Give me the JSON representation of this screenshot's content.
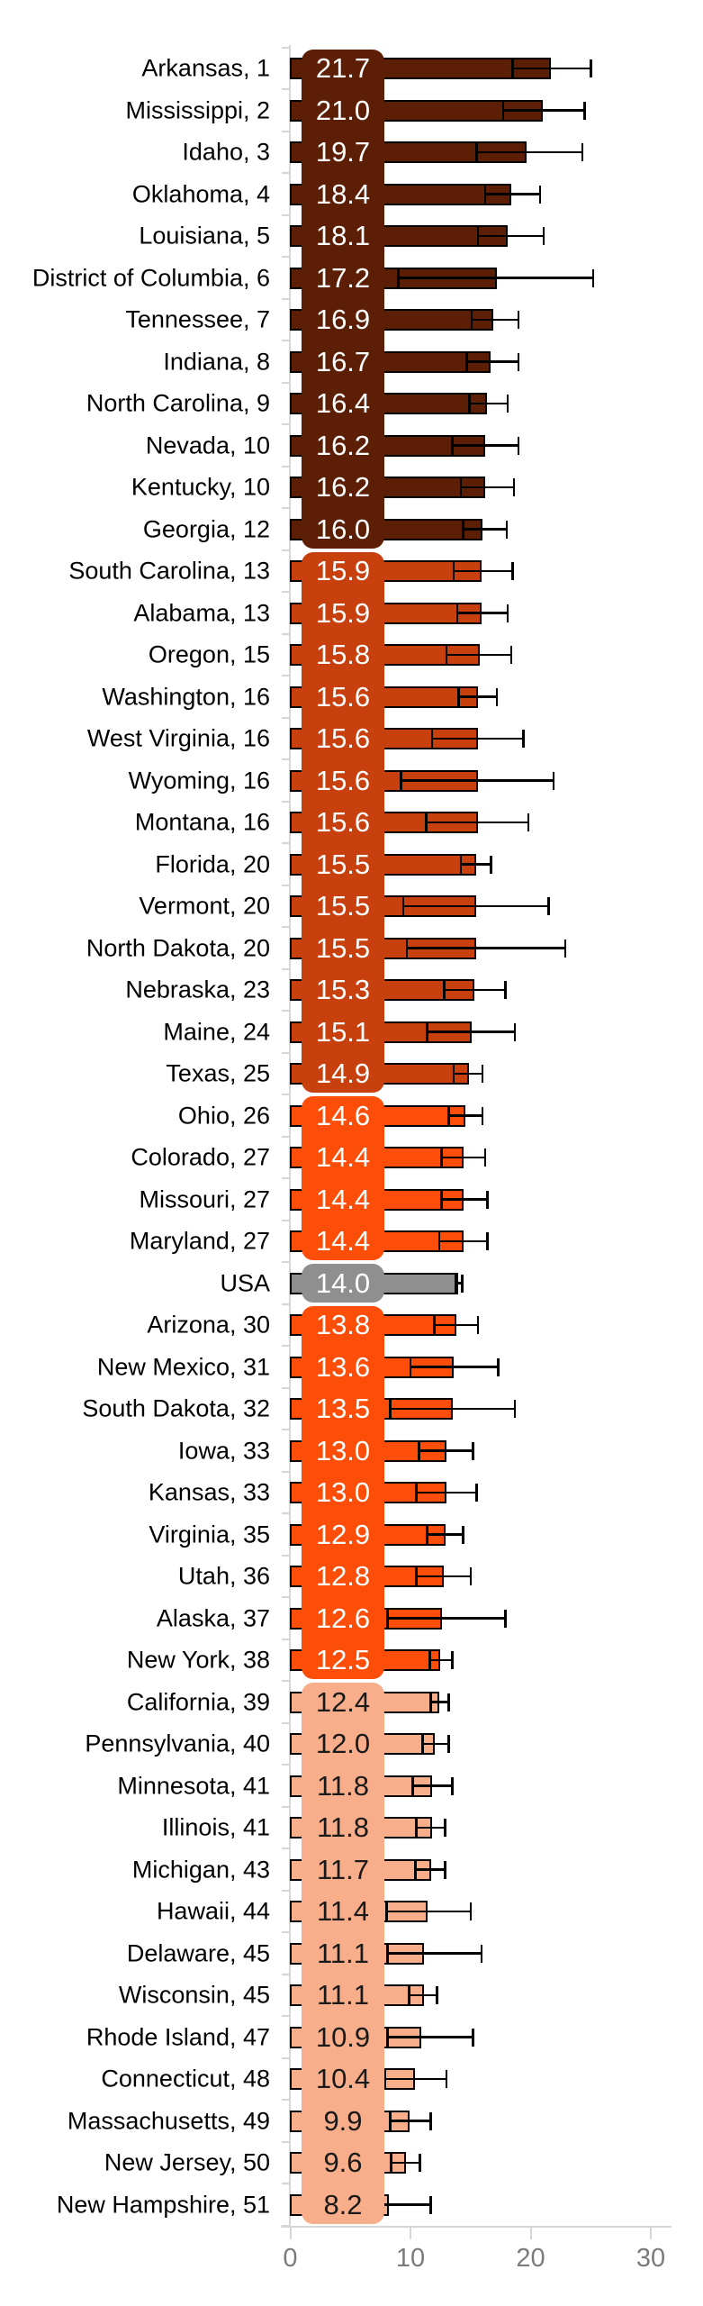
{
  "chart_data": {
    "type": "bar",
    "orientation": "horizontal",
    "title": "",
    "xlabel": "",
    "ylabel": "",
    "x_axis": {
      "range": [
        0,
        30
      ],
      "ticks": [
        0,
        10,
        20,
        30
      ],
      "grid": false
    },
    "legend": "none",
    "style": {
      "axis_color": "#D6D6D6",
      "tick_label_color": "#7B7B7B",
      "bar_outline_color": "#000000",
      "error_bar_color": "#000000",
      "state_label_color": "#000000"
    },
    "tiers": [
      {
        "name": "ranks-1-12",
        "color": "#5C1F05",
        "text_color": "#FFFFFF",
        "from": 1,
        "to": 12
      },
      {
        "name": "ranks-13-25",
        "color": "#C7400D",
        "text_color": "#FFFFFF",
        "from": 13,
        "to": 25
      },
      {
        "name": "ranks-26-29",
        "color": "#FC4E08",
        "text_color": "#FFFFFF",
        "from": 26,
        "to": 29
      },
      {
        "name": "usa",
        "color": "#8F8F8F",
        "text_color": "#FFFFFF",
        "from": 30,
        "to": 30
      },
      {
        "name": "ranks-31-39",
        "color": "#FC4E08",
        "text_color": "#FFFFFF",
        "from": 31,
        "to": 39
      },
      {
        "name": "ranks-40-52",
        "color": "#F8AE8A",
        "text_color": "#1A1A1A",
        "from": 40,
        "to": 52
      }
    ],
    "rows": [
      {
        "label": "Arkansas, 1",
        "value": 21.7,
        "ci_low": 18.5,
        "ci_high": 25.0
      },
      {
        "label": "Mississippi, 2",
        "value": 21.0,
        "ci_low": 17.7,
        "ci_high": 24.5
      },
      {
        "label": "Idaho, 3",
        "value": 19.7,
        "ci_low": 15.5,
        "ci_high": 24.3
      },
      {
        "label": "Oklahoma, 4",
        "value": 18.4,
        "ci_low": 16.2,
        "ci_high": 20.8
      },
      {
        "label": "Louisiana, 5",
        "value": 18.1,
        "ci_low": 15.6,
        "ci_high": 21.1
      },
      {
        "label": "District of Columbia, 6",
        "value": 17.2,
        "ci_low": 9.0,
        "ci_high": 25.2
      },
      {
        "label": "Tennessee, 7",
        "value": 16.9,
        "ci_low": 15.1,
        "ci_high": 19.0
      },
      {
        "label": "Indiana, 8",
        "value": 16.7,
        "ci_low": 14.7,
        "ci_high": 19.0
      },
      {
        "label": "North Carolina, 9",
        "value": 16.4,
        "ci_low": 14.9,
        "ci_high": 18.1
      },
      {
        "label": "Nevada, 10",
        "value": 16.2,
        "ci_low": 13.5,
        "ci_high": 19.0
      },
      {
        "label": "Kentucky, 10",
        "value": 16.2,
        "ci_low": 14.2,
        "ci_high": 18.6
      },
      {
        "label": "Georgia, 12",
        "value": 16.0,
        "ci_low": 14.4,
        "ci_high": 18.0
      },
      {
        "label": "South Carolina, 13",
        "value": 15.9,
        "ci_low": 13.6,
        "ci_high": 18.5
      },
      {
        "label": "Alabama, 13",
        "value": 15.9,
        "ci_low": 13.9,
        "ci_high": 18.1
      },
      {
        "label": "Oregon, 15",
        "value": 15.8,
        "ci_low": 13.0,
        "ci_high": 18.4
      },
      {
        "label": "Washington, 16",
        "value": 15.6,
        "ci_low": 14.0,
        "ci_high": 17.2
      },
      {
        "label": "West Virginia, 16",
        "value": 15.6,
        "ci_low": 11.8,
        "ci_high": 19.4
      },
      {
        "label": "Wyoming, 16",
        "value": 15.6,
        "ci_low": 9.2,
        "ci_high": 21.9
      },
      {
        "label": "Montana, 16",
        "value": 15.6,
        "ci_low": 11.3,
        "ci_high": 19.8
      },
      {
        "label": "Florida, 20",
        "value": 15.5,
        "ci_low": 14.2,
        "ci_high": 16.7
      },
      {
        "label": "Vermont, 20",
        "value": 15.5,
        "ci_low": 9.4,
        "ci_high": 21.5
      },
      {
        "label": "North Dakota, 20",
        "value": 15.5,
        "ci_low": 9.7,
        "ci_high": 22.9
      },
      {
        "label": "Nebraska, 23",
        "value": 15.3,
        "ci_low": 12.8,
        "ci_high": 17.9
      },
      {
        "label": "Maine, 24",
        "value": 15.1,
        "ci_low": 11.4,
        "ci_high": 18.7
      },
      {
        "label": "Texas, 25",
        "value": 14.9,
        "ci_low": 13.6,
        "ci_high": 16.0
      },
      {
        "label": "Ohio, 26",
        "value": 14.6,
        "ci_low": 13.2,
        "ci_high": 16.0
      },
      {
        "label": "Colorado, 27",
        "value": 14.4,
        "ci_low": 12.6,
        "ci_high": 16.2
      },
      {
        "label": "Missouri, 27",
        "value": 14.4,
        "ci_low": 12.6,
        "ci_high": 16.4
      },
      {
        "label": "Maryland, 27",
        "value": 14.4,
        "ci_low": 12.4,
        "ci_high": 16.4
      },
      {
        "label": "USA",
        "value": 14.0,
        "ci_low": 13.8,
        "ci_high": 14.3
      },
      {
        "label": "Arizona, 30",
        "value": 13.8,
        "ci_low": 12.0,
        "ci_high": 15.6
      },
      {
        "label": "New Mexico, 31",
        "value": 13.6,
        "ci_low": 10.0,
        "ci_high": 17.3
      },
      {
        "label": "South Dakota, 32",
        "value": 13.5,
        "ci_low": 8.3,
        "ci_high": 18.7
      },
      {
        "label": "Iowa, 33",
        "value": 13.0,
        "ci_low": 10.7,
        "ci_high": 15.2
      },
      {
        "label": "Kansas, 33",
        "value": 13.0,
        "ci_low": 10.5,
        "ci_high": 15.5
      },
      {
        "label": "Virginia, 35",
        "value": 12.9,
        "ci_low": 11.4,
        "ci_high": 14.4
      },
      {
        "label": "Utah, 36",
        "value": 12.8,
        "ci_low": 10.5,
        "ci_high": 15.0
      },
      {
        "label": "Alaska, 37",
        "value": 12.6,
        "ci_low": 8.1,
        "ci_high": 17.9
      },
      {
        "label": "New York, 38",
        "value": 12.5,
        "ci_low": 11.6,
        "ci_high": 13.5
      },
      {
        "label": "California, 39",
        "value": 12.4,
        "ci_low": 11.7,
        "ci_high": 13.2
      },
      {
        "label": "Pennsylvania, 40",
        "value": 12.0,
        "ci_low": 11.0,
        "ci_high": 13.2
      },
      {
        "label": "Minnesota, 41",
        "value": 11.8,
        "ci_low": 10.2,
        "ci_high": 13.5
      },
      {
        "label": "Illinois, 41",
        "value": 11.8,
        "ci_low": 10.5,
        "ci_high": 12.9
      },
      {
        "label": "Michigan, 43",
        "value": 11.7,
        "ci_low": 10.4,
        "ci_high": 12.9
      },
      {
        "label": "Hawaii, 44",
        "value": 11.4,
        "ci_low": 8.0,
        "ci_high": 15.0
      },
      {
        "label": "Delaware, 45",
        "value": 11.1,
        "ci_low": 8.1,
        "ci_high": 15.9
      },
      {
        "label": "Wisconsin, 45",
        "value": 11.1,
        "ci_low": 9.9,
        "ci_high": 12.2
      },
      {
        "label": "Rhode Island, 47",
        "value": 10.9,
        "ci_low": 8.1,
        "ci_high": 15.2
      },
      {
        "label": "Connecticut, 48",
        "value": 10.4,
        "ci_low": 7.9,
        "ci_high": 13.0
      },
      {
        "label": "Massachusetts, 49",
        "value": 9.9,
        "ci_low": 8.3,
        "ci_high": 11.7
      },
      {
        "label": "New Jersey, 50",
        "value": 9.6,
        "ci_low": 8.4,
        "ci_high": 10.8
      },
      {
        "label": "New Hampshire, 51",
        "value": 8.2,
        "ci_low": 7.7,
        "ci_high": 11.7
      }
    ]
  }
}
